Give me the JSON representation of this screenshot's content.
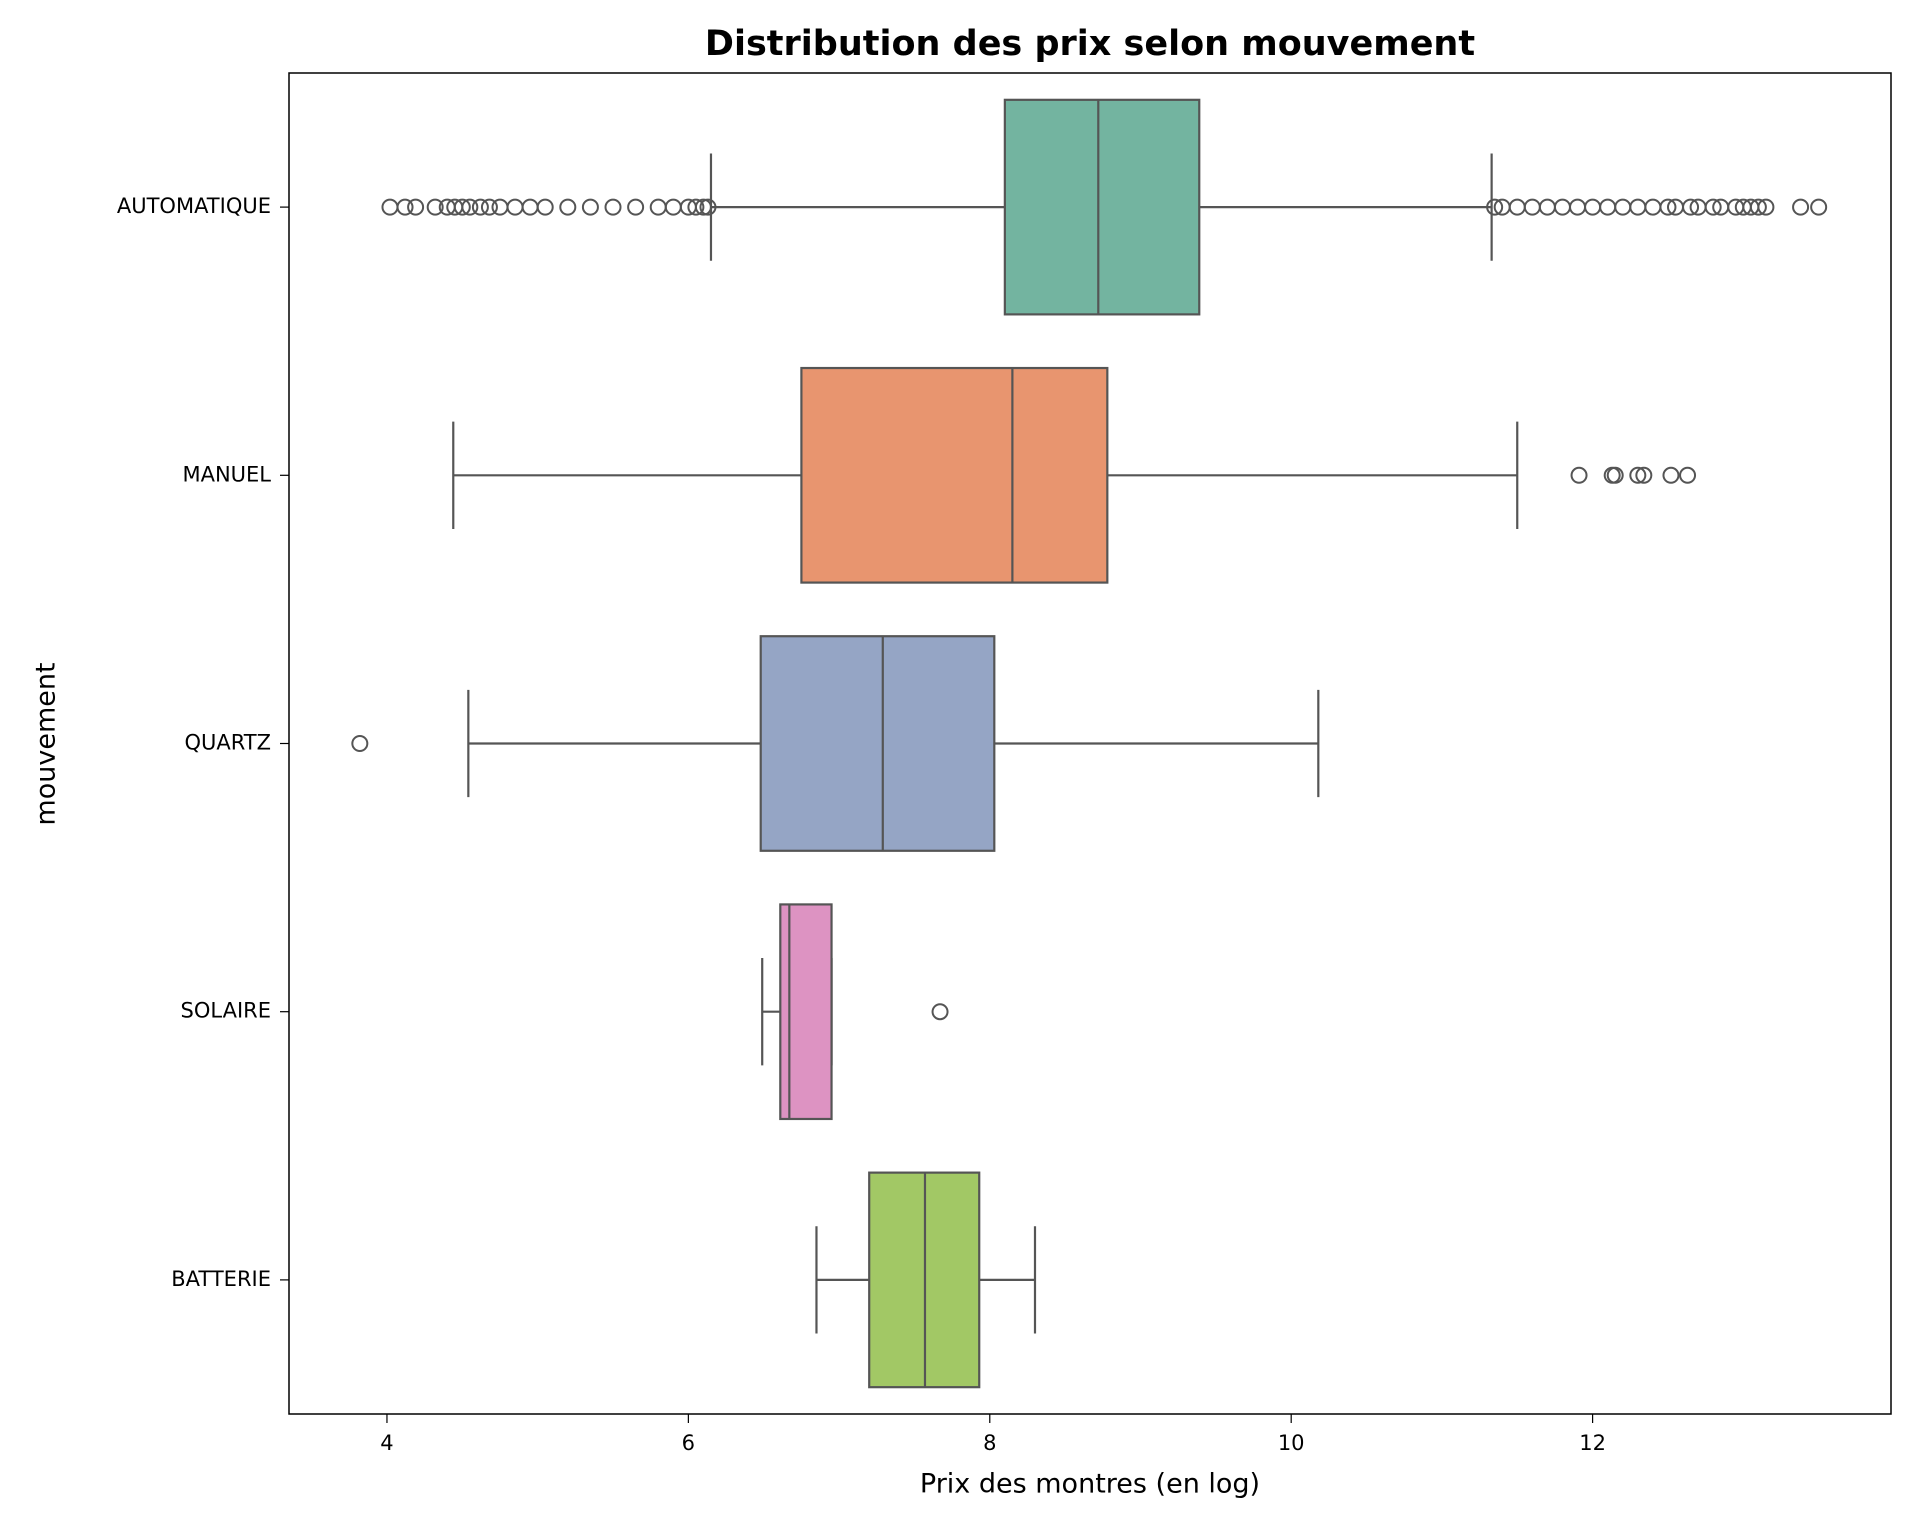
{
  "chart_data": {
    "type": "box",
    "title": "Distribution des prix selon mouvement",
    "xlabel": "Prix des montres (en log)",
    "ylabel": "mouvement",
    "categories": [
      "AUTOMATIQUE",
      "MANUEL",
      "QUARTZ",
      "SOLAIRE",
      "BATTERIE"
    ],
    "colors": [
      "#73b4a0",
      "#e8956f",
      "#95a5c5",
      "#dd93c2",
      "#a2c865"
    ],
    "xlim": [
      3.35,
      13.98
    ],
    "xticks": [
      4,
      6,
      8,
      10,
      12
    ],
    "boxes": [
      {
        "whislo": 6.15,
        "q1": 8.1,
        "med": 8.72,
        "q3": 9.39,
        "whishi": 11.33,
        "fliers": [
          4.02,
          4.12,
          4.19,
          4.32,
          4.4,
          4.45,
          4.5,
          4.55,
          4.62,
          4.68,
          4.75,
          4.85,
          4.95,
          5.05,
          5.2,
          5.35,
          5.5,
          5.65,
          5.8,
          5.9,
          6.0,
          6.05,
          6.1,
          6.13,
          11.35,
          11.4,
          11.5,
          11.6,
          11.7,
          11.8,
          11.9,
          12.0,
          12.1,
          12.2,
          12.3,
          12.4,
          12.5,
          12.55,
          12.65,
          12.7,
          12.8,
          12.85,
          12.95,
          13.0,
          13.05,
          13.1,
          13.15,
          13.38,
          13.5
        ]
      },
      {
        "whislo": 4.44,
        "q1": 6.75,
        "med": 8.15,
        "q3": 8.78,
        "whishi": 11.5,
        "fliers": [
          11.91,
          12.13,
          12.15,
          12.3,
          12.34,
          12.52,
          12.63
        ]
      },
      {
        "whislo": 4.54,
        "q1": 6.48,
        "med": 7.29,
        "q3": 8.03,
        "whishi": 10.18,
        "fliers": [
          3.82
        ]
      },
      {
        "whislo": 6.49,
        "q1": 6.61,
        "med": 6.67,
        "q3": 6.95,
        "whishi": 6.95,
        "fliers": [
          7.67
        ]
      },
      {
        "whislo": 6.85,
        "q1": 7.2,
        "med": 7.57,
        "q3": 7.93,
        "whishi": 8.3,
        "fliers": []
      }
    ]
  }
}
